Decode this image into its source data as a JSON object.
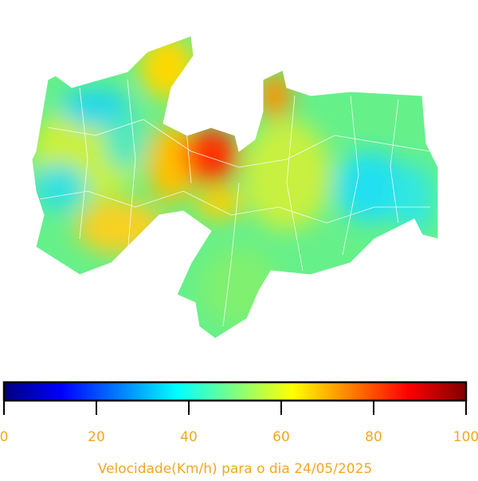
{
  "colorbar": {
    "colors": [
      "#00007f",
      "#0000ff",
      "#007fff",
      "#00ffff",
      "#7fff7f",
      "#ffff00",
      "#ff7f00",
      "#ff0000",
      "#7f0000"
    ],
    "lim": [
      0,
      100
    ],
    "ticks": [
      0,
      20,
      40,
      60,
      80,
      100
    ],
    "label": "Velocidade(Km/h) para o dia 24/05/2025"
  }
}
